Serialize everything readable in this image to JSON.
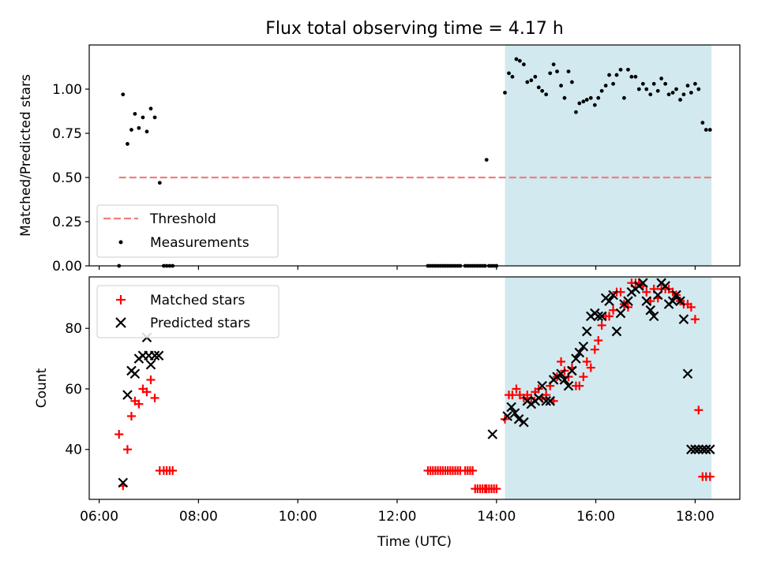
{
  "chart_data": {
    "title": "Flux total observing time = 4.17 h",
    "xlabel": "Time (UTC)",
    "x_ticks": [
      "06:00",
      "08:00",
      "10:00",
      "12:00",
      "14:00",
      "16:00",
      "18:00"
    ],
    "x_tick_hours": [
      6,
      8,
      10,
      12,
      14,
      16,
      18
    ],
    "xlim_hours": [
      5.8,
      18.9
    ],
    "shaded_interval_hours": [
      14.17,
      18.33
    ],
    "shade_color": "#d3e9f0",
    "panels": [
      {
        "type": "scatter",
        "ylabel": "Matched/Predicted stars",
        "ylim": [
          0,
          1.25
        ],
        "y_ticks": [
          "0.00",
          "0.25",
          "0.50",
          "0.75",
          "1.00"
        ],
        "threshold": {
          "name": "Threshold",
          "value": 0.5,
          "x_range_hours": [
            6.4,
            18.33
          ],
          "color": "#f08080"
        },
        "legend": {
          "location": "lower-left",
          "entries": [
            "Threshold",
            "Measurements"
          ]
        },
        "series": [
          {
            "name": "Measurements",
            "color": "#000000",
            "x_hours": [
              6.4,
              6.48,
              6.57,
              6.65,
              6.72,
              6.8,
              6.88,
              6.96,
              7.04,
              7.12,
              7.22,
              7.3,
              7.36,
              7.42,
              7.48,
              12.62,
              12.67,
              12.72,
              12.77,
              12.82,
              12.87,
              12.92,
              12.97,
              13.02,
              13.07,
              13.12,
              13.17,
              13.22,
              13.27,
              13.37,
              13.42,
              13.47,
              13.52,
              13.57,
              13.62,
              13.67,
              13.72,
              13.77,
              13.8,
              13.85,
              13.9,
              13.95,
              14.0,
              14.17,
              14.25,
              14.32,
              14.4,
              14.47,
              14.55,
              14.62,
              14.7,
              14.78,
              14.85,
              14.92,
              15.0,
              15.08,
              15.15,
              15.22,
              15.3,
              15.37,
              15.45,
              15.52,
              15.6,
              15.67,
              15.75,
              15.82,
              15.9,
              15.98,
              16.05,
              16.12,
              16.2,
              16.27,
              16.35,
              16.42,
              16.5,
              16.57,
              16.65,
              16.72,
              16.8,
              16.87,
              16.95,
              17.02,
              17.1,
              17.17,
              17.25,
              17.32,
              17.4,
              17.47,
              17.55,
              17.62,
              17.7,
              17.77,
              17.85,
              17.92,
              18.0,
              18.07,
              18.15,
              18.22,
              18.3
            ],
            "y": [
              0.0,
              0.97,
              0.69,
              0.77,
              0.86,
              0.78,
              0.84,
              0.76,
              0.89,
              0.84,
              0.47,
              0.0,
              0.0,
              0.0,
              0.0,
              0.0,
              0.0,
              0.0,
              0.0,
              0.0,
              0.0,
              0.0,
              0.0,
              0.0,
              0.0,
              0.0,
              0.0,
              0.0,
              0.0,
              0.0,
              0.0,
              0.0,
              0.0,
              0.0,
              0.0,
              0.0,
              0.0,
              0.0,
              0.6,
              0.0,
              0.0,
              0.0,
              0.0,
              0.98,
              1.09,
              1.07,
              1.17,
              1.16,
              1.14,
              1.04,
              1.05,
              1.07,
              1.01,
              0.99,
              0.97,
              1.09,
              1.14,
              1.1,
              1.02,
              0.95,
              1.1,
              1.04,
              0.87,
              0.92,
              0.93,
              0.94,
              0.95,
              0.91,
              0.95,
              0.99,
              1.02,
              1.08,
              1.03,
              1.08,
              1.11,
              0.95,
              1.11,
              1.07,
              1.07,
              1.0,
              1.03,
              1.0,
              0.97,
              1.03,
              0.99,
              1.06,
              1.03,
              0.97,
              0.98,
              1.0,
              0.94,
              0.97,
              1.02,
              0.98,
              1.03,
              1.0,
              0.81,
              0.77,
              0.77
            ]
          }
        ]
      },
      {
        "type": "scatter",
        "ylabel": "Count",
        "ylim": [
          23.5,
          97
        ],
        "y_ticks": [
          "40",
          "60",
          "80"
        ],
        "legend": {
          "location": "upper-left",
          "entries": [
            "Matched stars",
            "Predicted stars"
          ]
        },
        "series": [
          {
            "name": "Matched stars",
            "marker": "+",
            "color": "#ff0000",
            "x_hours": [
              6.4,
              6.48,
              6.57,
              6.65,
              6.72,
              6.8,
              6.88,
              6.96,
              7.04,
              7.12,
              7.22,
              7.3,
              7.36,
              7.42,
              7.48,
              12.62,
              12.67,
              12.72,
              12.77,
              12.82,
              12.87,
              12.92,
              12.97,
              13.02,
              13.07,
              13.12,
              13.17,
              13.22,
              13.27,
              13.37,
              13.42,
              13.47,
              13.52,
              13.57,
              13.62,
              13.67,
              13.72,
              13.77,
              13.8,
              13.85,
              13.9,
              13.95,
              14.0,
              14.17,
              14.25,
              14.32,
              14.4,
              14.47,
              14.55,
              14.62,
              14.7,
              14.78,
              14.85,
              14.92,
              15.0,
              15.08,
              15.15,
              15.22,
              15.3,
              15.37,
              15.45,
              15.52,
              15.6,
              15.67,
              15.75,
              15.82,
              15.9,
              15.98,
              16.05,
              16.12,
              16.2,
              16.27,
              16.35,
              16.42,
              16.5,
              16.57,
              16.65,
              16.72,
              16.8,
              16.87,
              16.95,
              17.02,
              17.1,
              17.17,
              17.25,
              17.32,
              17.4,
              17.47,
              17.55,
              17.62,
              17.7,
              17.77,
              17.85,
              17.92,
              18.0,
              18.07,
              18.15,
              18.22,
              18.3
            ],
            "y": [
              45,
              28,
              40,
              51,
              56,
              55,
              60,
              59,
              63,
              57,
              33,
              33,
              33,
              33,
              33,
              33,
              33,
              33,
              33,
              33,
              33,
              33,
              33,
              33,
              33,
              33,
              33,
              33,
              33,
              33,
              33,
              33,
              33,
              27,
              27,
              27,
              27,
              27,
              27,
              27,
              27,
              27,
              27,
              50,
              58,
              58,
              60,
              58,
              57,
              58,
              57,
              59,
              60,
              57,
              58,
              61,
              56,
              64,
              69,
              66,
              64,
              67,
              61,
              61,
              64,
              69,
              67,
              73,
              76,
              81,
              84,
              84,
              86,
              92,
              92,
              88,
              87,
              95,
              95,
              95,
              94,
              92,
              89,
              93,
              90,
              93,
              93,
              93,
              92,
              91,
              89,
              88,
              88,
              87,
              83,
              53,
              31,
              31,
              31
            ]
          },
          {
            "name": "Predicted stars",
            "marker": "x",
            "color": "#000000",
            "x_hours": [
              6.48,
              6.57,
              6.65,
              6.72,
              6.8,
              6.88,
              6.96,
              7.0,
              7.04,
              7.12,
              7.2,
              13.92,
              14.22,
              14.3,
              14.37,
              14.45,
              14.55,
              14.62,
              14.7,
              14.78,
              14.85,
              14.92,
              15.0,
              15.08,
              15.15,
              15.22,
              15.3,
              15.37,
              15.45,
              15.52,
              15.6,
              15.67,
              15.75,
              15.82,
              15.9,
              15.98,
              16.05,
              16.12,
              16.2,
              16.27,
              16.35,
              16.42,
              16.5,
              16.57,
              16.65,
              16.72,
              16.8,
              16.87,
              16.95,
              17.02,
              17.1,
              17.17,
              17.25,
              17.32,
              17.4,
              17.47,
              17.55,
              17.62,
              17.7,
              17.77,
              17.85,
              17.92,
              18.0,
              18.07,
              18.15,
              18.22,
              18.3
            ],
            "y": [
              29,
              58,
              66,
              65,
              70,
              71,
              77,
              71,
              68,
              71,
              71,
              45,
              51,
              54,
              52,
              50,
              49,
              56,
              55,
              56,
              57,
              61,
              56,
              56,
              63,
              64,
              65,
              63,
              61,
              66,
              70,
              72,
              74,
              79,
              84,
              85,
              84,
              84,
              90,
              89,
              91,
              79,
              85,
              88,
              89,
              92,
              93,
              94,
              95,
              89,
              86,
              84,
              91,
              95,
              94,
              88,
              89,
              91,
              89,
              83,
              65,
              40,
              40,
              40,
              40,
              40,
              40
            ]
          }
        ]
      }
    ]
  }
}
